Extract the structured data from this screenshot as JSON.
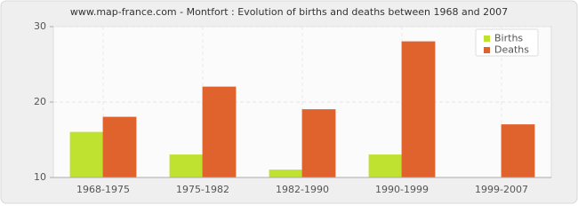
{
  "chart_data": {
    "type": "bar",
    "title": "www.map-france.com - Montfort : Evolution of births and deaths between 1968 and 2007",
    "categories": [
      "1968-1975",
      "1975-1982",
      "1982-1990",
      "1990-1999",
      "1999-2007"
    ],
    "series": [
      {
        "name": "Births",
        "color": "#bfe12f",
        "values": [
          16,
          13,
          11,
          13,
          10
        ]
      },
      {
        "name": "Deaths",
        "color": "#e0622d",
        "values": [
          18,
          22,
          19,
          28,
          17
        ]
      }
    ],
    "ylim": [
      10,
      30
    ],
    "yticks": [
      10,
      20,
      30
    ],
    "grid": true,
    "legend": "top-right"
  }
}
